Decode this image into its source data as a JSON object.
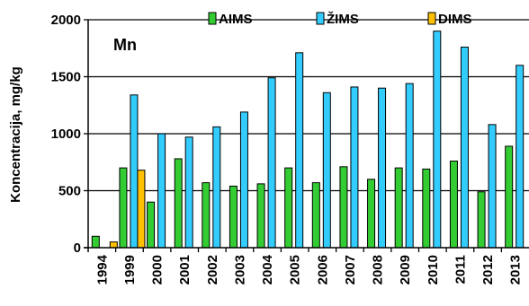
{
  "chart_data": {
    "type": "bar",
    "title": "",
    "annotation": "Mn",
    "ylabel": "Koncentracija, mg/kg",
    "xlabel": "",
    "ylim": [
      0,
      2000
    ],
    "yticks": [
      0,
      500,
      1000,
      1500,
      2000
    ],
    "grid": true,
    "legend_position": "top",
    "categories": [
      "1994",
      "1999",
      "2000",
      "2001",
      "2002",
      "2003",
      "2004",
      "2005",
      "2006",
      "2007",
      "2008",
      "2009",
      "2010",
      "2011",
      "2012",
      "2013"
    ],
    "series": [
      {
        "name": "AIMS",
        "color": "#33cc33",
        "values": [
          100,
          700,
          400,
          780,
          570,
          540,
          560,
          700,
          570,
          710,
          600,
          700,
          690,
          760,
          490,
          890
        ]
      },
      {
        "name": "ŽIMS",
        "color": "#33ccff",
        "values": [
          null,
          1340,
          1000,
          970,
          1060,
          1190,
          1490,
          1710,
          1360,
          1410,
          1400,
          1440,
          1900,
          1760,
          1080,
          1600
        ]
      },
      {
        "name": "DIMS",
        "color": "#ffc000",
        "values": [
          50,
          680,
          null,
          null,
          null,
          null,
          null,
          null,
          null,
          null,
          null,
          null,
          null,
          null,
          null,
          null
        ]
      }
    ]
  }
}
